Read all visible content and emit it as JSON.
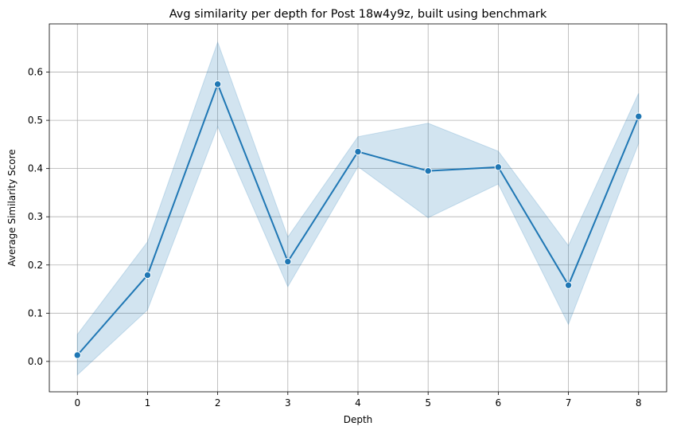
{
  "chart_data": {
    "type": "line",
    "title": "Avg similarity per depth for Post 18w4y9z, built using benchmark",
    "xlabel": "Depth",
    "ylabel": "Average Similarity Score",
    "x": [
      0,
      1,
      2,
      3,
      4,
      5,
      6,
      7,
      8
    ],
    "x_ticks": [
      "0",
      "1",
      "2",
      "3",
      "4",
      "5",
      "6",
      "7",
      "8"
    ],
    "y_ticks": [
      "0.0",
      "0.1",
      "0.2",
      "0.3",
      "0.4",
      "0.5",
      "0.6"
    ],
    "xlim": [
      -0.4,
      8.4
    ],
    "ylim": [
      -0.063,
      0.7
    ],
    "grid": true,
    "series": [
      {
        "values": [
          0.013,
          0.179,
          0.575,
          0.207,
          0.435,
          0.395,
          0.403,
          0.158,
          0.508
        ],
        "ci_lower": [
          -0.028,
          0.107,
          0.487,
          0.155,
          0.404,
          0.298,
          0.368,
          0.077,
          0.452
        ],
        "ci_upper": [
          0.056,
          0.248,
          0.662,
          0.258,
          0.466,
          0.494,
          0.436,
          0.24,
          0.556
        ],
        "color": "#1f77b4",
        "band_color": "#1f77b4",
        "marker": "circle"
      }
    ]
  }
}
